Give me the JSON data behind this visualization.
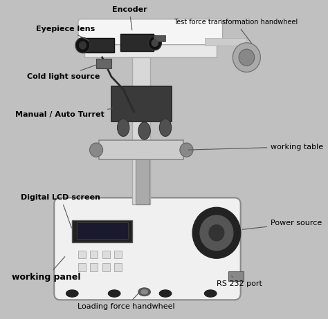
{
  "background_color": "#c0c0c0",
  "figure_bg": "#b8b8b8",
  "labels": [
    {
      "text": "Encoder",
      "txy": [
        0.43,
        0.97
      ],
      "axy": [
        0.44,
        0.9
      ],
      "ha": "center",
      "fontsize": 8,
      "bold": true
    },
    {
      "text": "Test force transformation handwheel",
      "txy": [
        0.99,
        0.93
      ],
      "axy": [
        0.84,
        0.86
      ],
      "ha": "right",
      "fontsize": 7,
      "bold": false
    },
    {
      "text": "Eyepiece lens",
      "txy": [
        0.12,
        0.91
      ],
      "axy": [
        0.3,
        0.87
      ],
      "ha": "left",
      "fontsize": 8,
      "bold": true
    },
    {
      "text": "Cold light source",
      "txy": [
        0.09,
        0.76
      ],
      "axy": [
        0.33,
        0.8
      ],
      "ha": "left",
      "fontsize": 8,
      "bold": true
    },
    {
      "text": "Manual / Auto Turret",
      "txy": [
        0.05,
        0.64
      ],
      "axy": [
        0.38,
        0.66
      ],
      "ha": "left",
      "fontsize": 8,
      "bold": true
    },
    {
      "text": "working table",
      "txy": [
        0.9,
        0.54
      ],
      "axy": [
        0.62,
        0.53
      ],
      "ha": "left",
      "fontsize": 8,
      "bold": false
    },
    {
      "text": "Digital LCD screen",
      "txy": [
        0.07,
        0.38
      ],
      "axy": [
        0.24,
        0.28
      ],
      "ha": "left",
      "fontsize": 8,
      "bold": true
    },
    {
      "text": "Power source",
      "txy": [
        0.9,
        0.3
      ],
      "axy": [
        0.8,
        0.28
      ],
      "ha": "left",
      "fontsize": 8,
      "bold": false
    },
    {
      "text": "working panel",
      "txy": [
        0.04,
        0.13
      ],
      "axy": [
        0.22,
        0.2
      ],
      "ha": "left",
      "fontsize": 9,
      "bold": true
    },
    {
      "text": "RS 232 port",
      "txy": [
        0.72,
        0.11
      ],
      "axy": [
        0.77,
        0.135
      ],
      "ha": "left",
      "fontsize": 8,
      "bold": false
    },
    {
      "text": "Loading force handwheel",
      "txy": [
        0.42,
        0.04
      ],
      "axy": [
        0.47,
        0.09
      ],
      "ha": "center",
      "fontsize": 8,
      "bold": false
    }
  ],
  "bg_color": "#c0c0c0",
  "base_fc": "#f0f0f0",
  "base_ec": "#888888",
  "col_fc": "#d8d8d8",
  "col_ec": "#aaaaaa",
  "dark": "#222222",
  "mid": "#555555",
  "light": "#cccccc",
  "arm_fc": "#e8e8e8",
  "arrow_color": "#555555"
}
